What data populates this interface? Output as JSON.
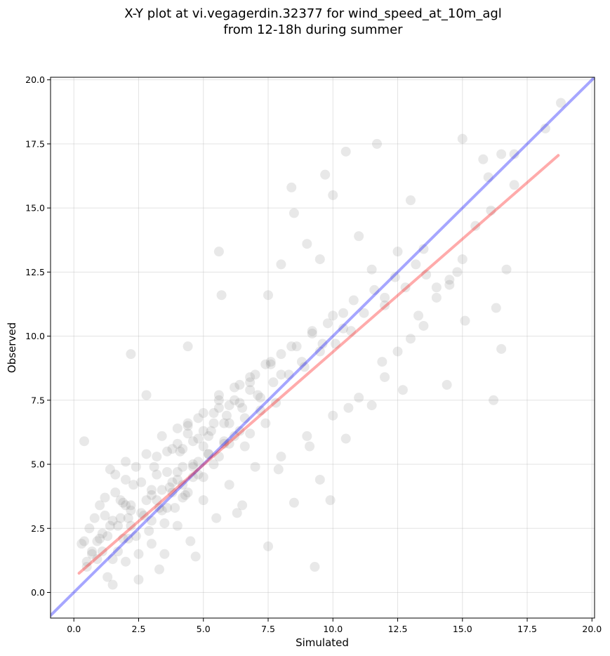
{
  "chart_data": {
    "type": "scatter",
    "title_line1": "X-Y plot at vi.vegagerdin.32377 for wind_speed_at_10m_agl",
    "title_line2": "from 12-18h during summer",
    "xlabel": "Simulated",
    "ylabel": "Observed",
    "xlim": [
      -0.9,
      20.1
    ],
    "ylim": [
      -1.0,
      20.1
    ],
    "xticks": [
      0.0,
      2.5,
      5.0,
      7.5,
      10.0,
      12.5,
      15.0,
      17.5,
      20.0
    ],
    "yticks": [
      0.0,
      2.5,
      5.0,
      7.5,
      10.0,
      12.5,
      15.0,
      17.5,
      20.0
    ],
    "xtick_labels": [
      "0.0",
      "2.5",
      "5.0",
      "7.5",
      "10.0",
      "12.5",
      "15.0",
      "17.5",
      "20.0"
    ],
    "ytick_labels": [
      "0.0",
      "2.5",
      "5.0",
      "7.5",
      "10.0",
      "12.5",
      "15.0",
      "17.5",
      "20.0"
    ],
    "grid": true,
    "point_color": "#808080",
    "identity_line": {
      "x": [
        -0.9,
        20.1
      ],
      "y": [
        -0.9,
        20.1
      ],
      "color": "#0000ff"
    },
    "fit_line": {
      "x": [
        0.2,
        18.7
      ],
      "y": [
        0.75,
        17.05
      ],
      "color": "#ff0000"
    },
    "points": {
      "x": [
        0.3,
        0.4,
        0.5,
        0.6,
        0.7,
        0.8,
        0.9,
        1.0,
        1.1,
        1.2,
        1.3,
        1.4,
        1.5,
        1.6,
        1.7,
        1.8,
        1.9,
        2.0,
        2.1,
        2.2,
        0.5,
        0.7,
        0.9,
        1.1,
        1.3,
        1.5,
        1.7,
        1.9,
        2.1,
        2.3,
        2.5,
        2.7,
        2.9,
        3.1,
        3.3,
        3.5,
        3.7,
        3.9,
        4.1,
        4.3,
        1.0,
        1.2,
        1.4,
        1.6,
        1.8,
        2.0,
        2.2,
        2.4,
        2.6,
        2.8,
        3.0,
        3.2,
        3.4,
        3.6,
        3.8,
        4.0,
        4.2,
        4.4,
        4.6,
        4.8,
        2.0,
        2.2,
        2.4,
        2.6,
        2.8,
        3.0,
        3.2,
        3.4,
        3.6,
        3.8,
        4.0,
        4.2,
        4.4,
        4.6,
        4.8,
        5.0,
        5.2,
        5.4,
        5.6,
        5.8,
        3.0,
        3.2,
        3.4,
        3.6,
        3.8,
        4.0,
        4.2,
        4.4,
        4.6,
        4.8,
        5.0,
        5.2,
        5.4,
        5.6,
        5.8,
        6.0,
        6.2,
        6.4,
        6.6,
        6.8,
        4.0,
        4.2,
        4.4,
        4.6,
        4.8,
        5.0,
        5.2,
        5.4,
        5.6,
        5.8,
        6.0,
        6.2,
        6.4,
        6.6,
        6.8,
        7.0,
        7.2,
        7.4,
        7.6,
        7.8,
        5.0,
        5.3,
        5.6,
        5.9,
        6.2,
        6.5,
        6.8,
        7.1,
        7.4,
        7.7,
        8.0,
        8.3,
        8.6,
        8.9,
        9.2,
        9.5,
        9.8,
        10.1,
        10.4,
        10.7,
        6.0,
        6.4,
        6.8,
        7.2,
        7.6,
        8.0,
        8.4,
        8.8,
        9.2,
        9.6,
        10.0,
        10.4,
        10.8,
        11.2,
        11.6,
        12.0,
        12.4,
        12.8,
        13.2,
        13.6,
        7.5,
        8.0,
        8.5,
        9.0,
        9.5,
        10.0,
        10.5,
        11.0,
        11.5,
        12.0,
        12.5,
        13.0,
        13.5,
        14.0,
        14.5,
        15.0,
        15.5,
        16.0,
        16.5,
        17.0,
        0.4,
        2.8,
        2.2,
        5.7,
        5.6,
        4.4,
        9.3,
        9.9,
        16.2,
        18.2,
        18.8,
        16.3,
        14.4,
        15.1,
        16.7,
        17.0,
        12.7,
        11.7,
        15.8,
        16.5,
        1.5,
        2.5,
        3.5,
        4.5,
        5.5,
        6.5,
        7.5,
        8.5,
        9.5,
        10.5,
        11.5,
        12.5,
        13.5,
        14.5,
        2.0,
        3.0,
        4.0,
        5.0,
        6.0,
        7.0,
        8.0,
        9.0,
        10.0,
        11.0,
        12.0,
        13.0,
        14.0,
        15.0,
        3.3,
        4.7,
        6.3,
        7.9,
        9.1,
        10.6,
        11.9,
        13.3,
        14.8,
        16.1,
        8.4,
        9.7
      ],
      "y": [
        1.9,
        2.0,
        1.2,
        2.5,
        1.5,
        2.9,
        2.0,
        3.4,
        1.6,
        3.0,
        2.2,
        4.8,
        1.3,
        3.9,
        2.6,
        3.6,
        2.1,
        4.4,
        2.9,
        3.2,
        1.0,
        1.6,
        1.3,
        2.3,
        0.6,
        2.8,
        1.6,
        3.5,
        2.1,
        4.2,
        1.5,
        3.0,
        2.4,
        4.9,
        3.3,
        2.7,
        4.1,
        3.3,
        5.5,
        3.8,
        2.1,
        3.7,
        2.6,
        4.6,
        2.9,
        5.1,
        3.4,
        2.2,
        4.3,
        3.6,
        2.8,
        5.3,
        4.0,
        3.3,
        5.6,
        4.4,
        3.7,
        6.2,
        4.5,
        5.1,
        3.4,
        2.6,
        4.9,
        3.1,
        5.4,
        4.0,
        3.6,
        6.1,
        4.7,
        3.9,
        5.8,
        4.2,
        6.6,
        5.0,
        4.6,
        6.3,
        5.4,
        5.0,
        7.2,
        5.8,
        3.8,
        4.6,
        3.2,
        5.5,
        4.3,
        6.4,
        4.9,
        3.9,
        5.9,
        6.8,
        4.5,
        6.1,
        7.0,
        5.3,
        6.6,
        5.8,
        7.5,
        6.3,
        5.7,
        7.9,
        4.7,
        5.6,
        6.5,
        4.9,
        6.0,
        7.0,
        5.4,
        6.6,
        7.7,
        5.9,
        7.3,
        6.1,
        8.1,
        6.8,
        6.2,
        8.5,
        7.1,
        6.6,
        8.9,
        7.4,
        5.7,
        6.3,
        7.5,
        6.9,
        8.0,
        7.2,
        8.4,
        7.7,
        8.9,
        8.2,
        9.3,
        8.5,
        9.6,
        8.8,
        10.1,
        9.4,
        10.5,
        9.7,
        10.9,
        10.2,
        6.6,
        7.4,
        8.2,
        7.6,
        9.0,
        8.5,
        9.6,
        9.0,
        10.2,
        9.7,
        10.8,
        10.3,
        11.4,
        10.9,
        11.8,
        11.2,
        12.3,
        11.9,
        12.8,
        12.4,
        11.6,
        12.8,
        14.8,
        13.6,
        13.0,
        15.5,
        17.2,
        13.9,
        12.6,
        11.5,
        13.3,
        15.3,
        13.4,
        11.9,
        12.2,
        17.7,
        14.3,
        16.2,
        17.1,
        15.9,
        5.9,
        7.7,
        9.3,
        11.6,
        13.3,
        9.6,
        1.0,
        3.6,
        7.5,
        18.1,
        19.1,
        11.1,
        8.1,
        10.6,
        12.6,
        17.1,
        7.9,
        17.5,
        16.9,
        9.5,
        0.3,
        0.5,
        1.5,
        2.0,
        2.9,
        3.4,
        1.8,
        3.5,
        4.4,
        6.0,
        7.3,
        9.4,
        10.4,
        12.0,
        1.2,
        1.9,
        2.6,
        3.6,
        4.2,
        4.9,
        5.3,
        6.1,
        6.9,
        7.6,
        8.4,
        9.9,
        11.5,
        13.0,
        0.9,
        1.4,
        3.1,
        4.8,
        5.7,
        7.2,
        9.0,
        10.8,
        12.5,
        14.9,
        15.8,
        16.3
      ]
    }
  }
}
